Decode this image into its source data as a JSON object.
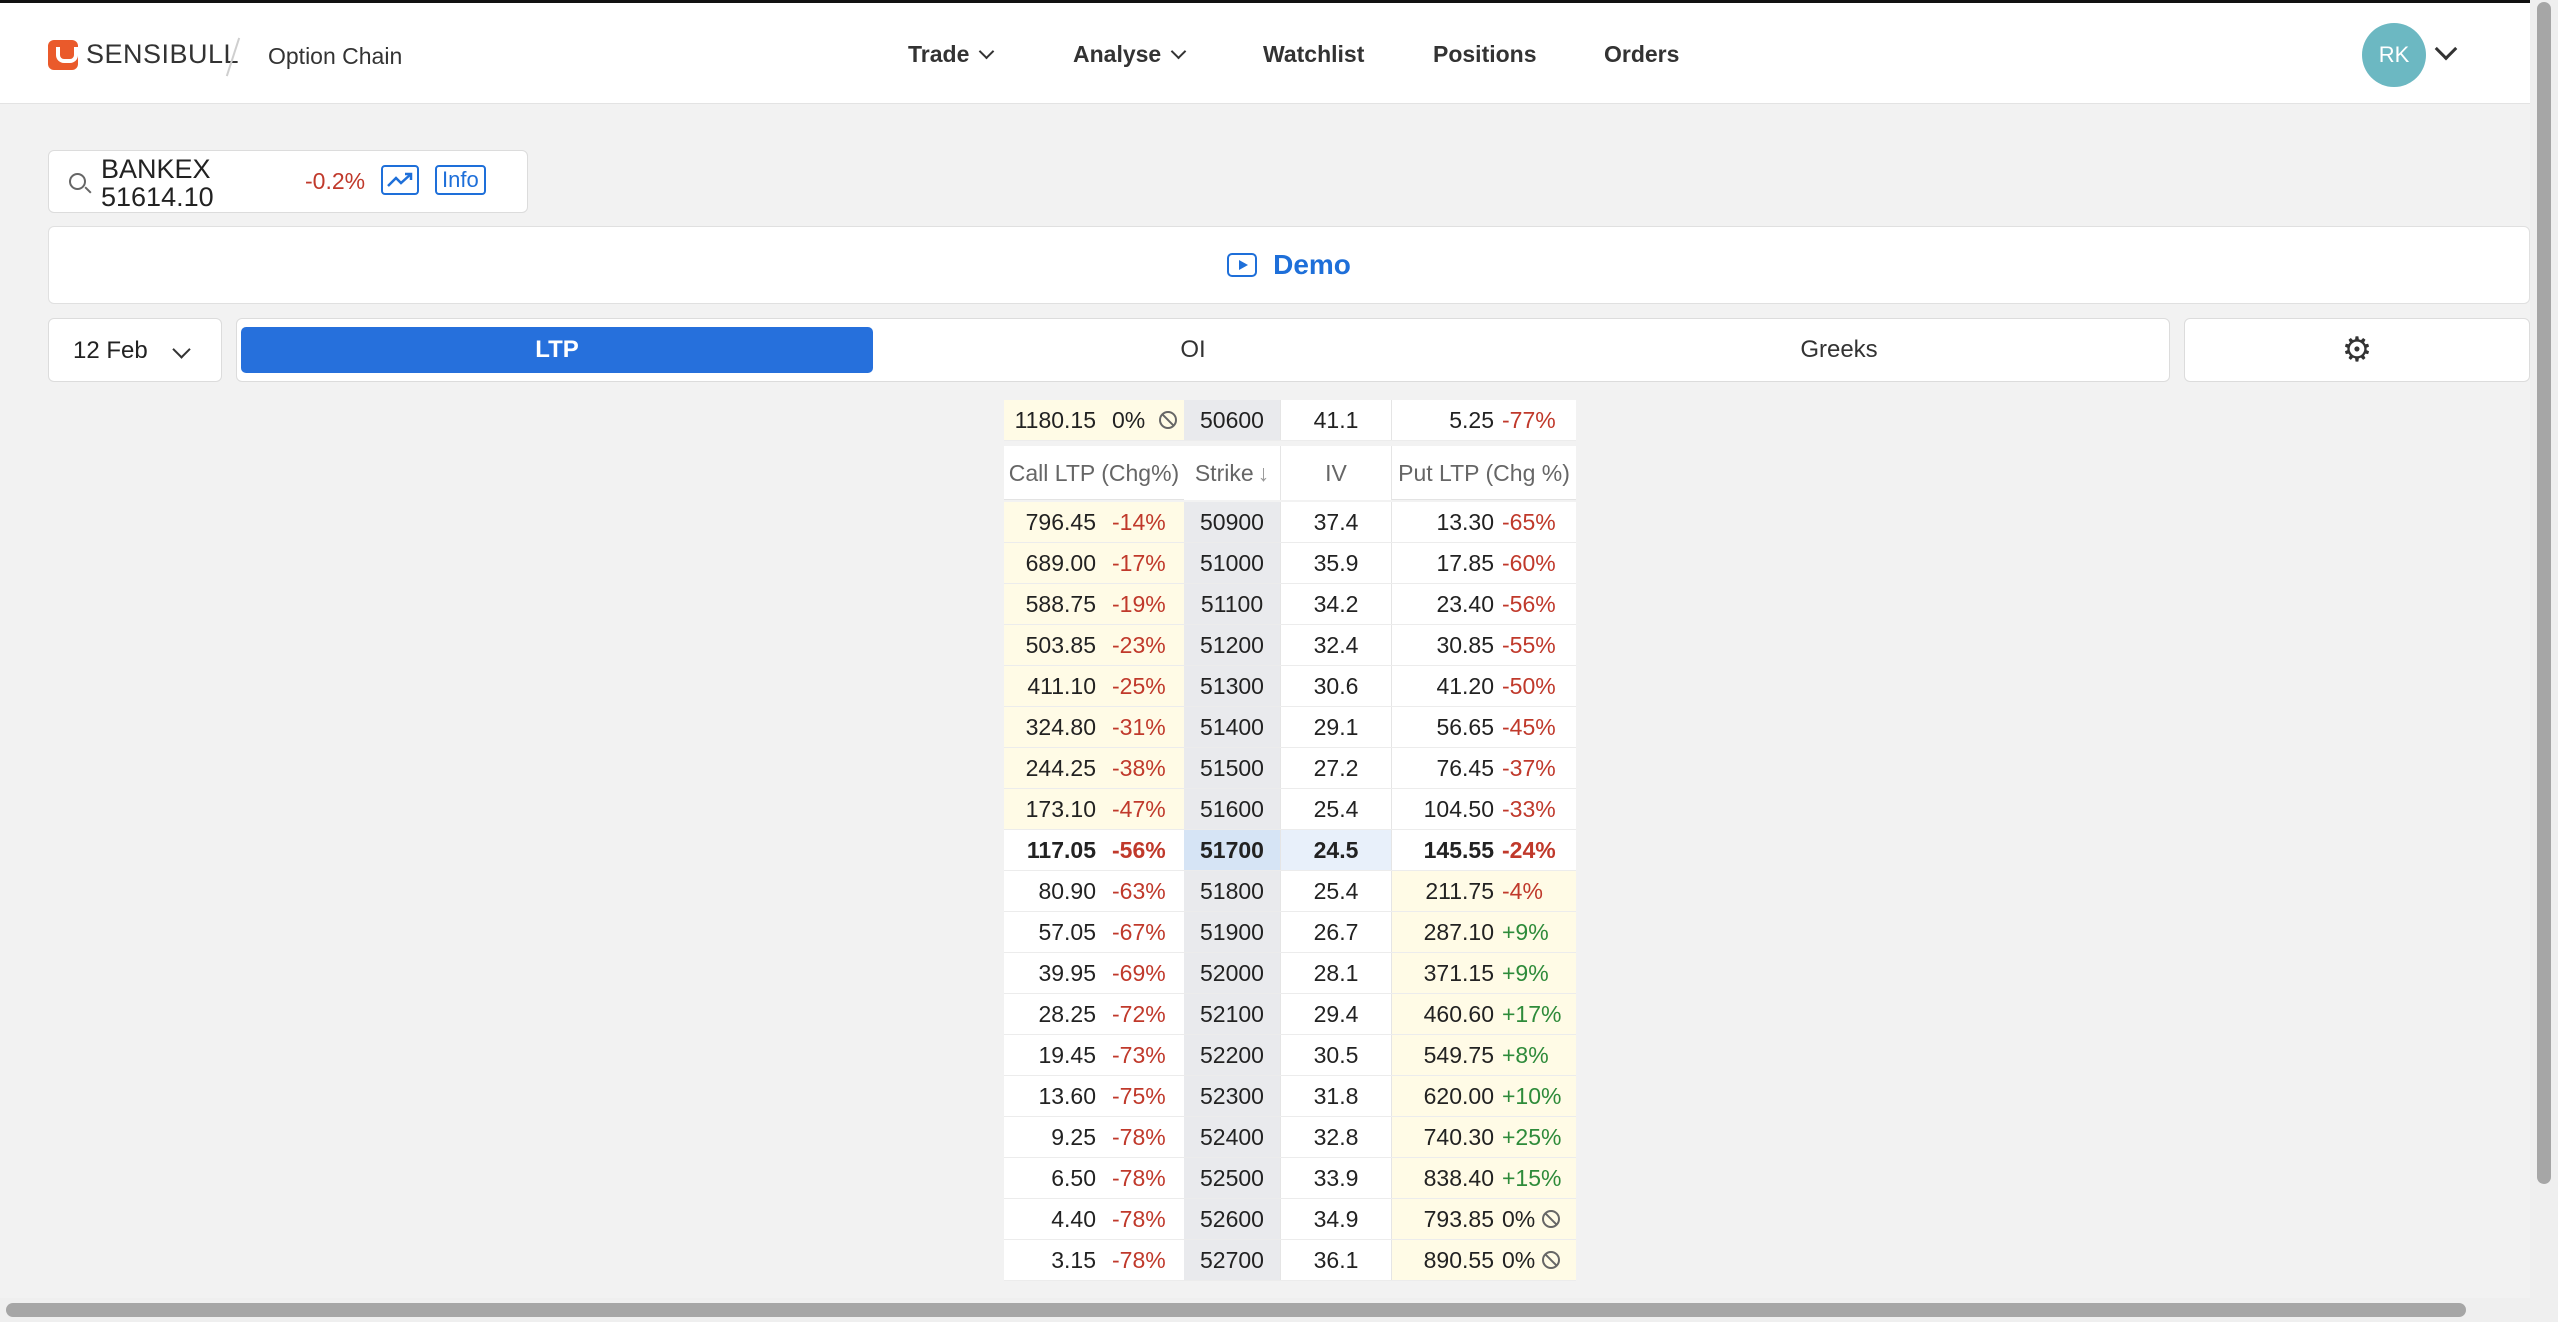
{
  "header": {
    "brand": "SENSIBULL",
    "breadcrumb": "Option Chain",
    "nav": {
      "trade": "Trade",
      "analyse": "Analyse",
      "watchlist": "Watchlist",
      "positions": "Positions",
      "orders": "Orders"
    },
    "user_initials": "RK"
  },
  "search": {
    "symbol": "BANKEX",
    "price": "51614.10",
    "change": "-0.2%",
    "info_label": "Info"
  },
  "demo": {
    "label": "Demo"
  },
  "controls": {
    "expiry": "12 Feb",
    "tabs": [
      "LTP",
      "OI",
      "Greeks"
    ],
    "active_tab": "LTP"
  },
  "pinned_row": {
    "call_ltp": "1180.15",
    "call_chg": "0%",
    "strike": "50600",
    "iv": "41.1",
    "put_ltp": "5.25",
    "put_chg": "-77%"
  },
  "columns": {
    "call": "Call LTP (Chg%)",
    "strike": "Strike",
    "iv": "IV",
    "put": "Put LTP (Chg %)"
  },
  "rows": [
    {
      "call_ltp": "796.45",
      "call_chg": "-14%",
      "strike": "50900",
      "iv": "37.4",
      "put_ltp": "13.30",
      "put_chg": "-65%"
    },
    {
      "call_ltp": "689.00",
      "call_chg": "-17%",
      "strike": "51000",
      "iv": "35.9",
      "put_ltp": "17.85",
      "put_chg": "-60%"
    },
    {
      "call_ltp": "588.75",
      "call_chg": "-19%",
      "strike": "51100",
      "iv": "34.2",
      "put_ltp": "23.40",
      "put_chg": "-56%"
    },
    {
      "call_ltp": "503.85",
      "call_chg": "-23%",
      "strike": "51200",
      "iv": "32.4",
      "put_ltp": "30.85",
      "put_chg": "-55%"
    },
    {
      "call_ltp": "411.10",
      "call_chg": "-25%",
      "strike": "51300",
      "iv": "30.6",
      "put_ltp": "41.20",
      "put_chg": "-50%"
    },
    {
      "call_ltp": "324.80",
      "call_chg": "-31%",
      "strike": "51400",
      "iv": "29.1",
      "put_ltp": "56.65",
      "put_chg": "-45%"
    },
    {
      "call_ltp": "244.25",
      "call_chg": "-38%",
      "strike": "51500",
      "iv": "27.2",
      "put_ltp": "76.45",
      "put_chg": "-37%"
    },
    {
      "call_ltp": "173.10",
      "call_chg": "-47%",
      "strike": "51600",
      "iv": "25.4",
      "put_ltp": "104.50",
      "put_chg": "-33%"
    },
    {
      "call_ltp": "117.05",
      "call_chg": "-56%",
      "strike": "51700",
      "iv": "24.5",
      "put_ltp": "145.55",
      "put_chg": "-24%"
    },
    {
      "call_ltp": "80.90",
      "call_chg": "-63%",
      "strike": "51800",
      "iv": "25.4",
      "put_ltp": "211.75",
      "put_chg": "-4%"
    },
    {
      "call_ltp": "57.05",
      "call_chg": "-67%",
      "strike": "51900",
      "iv": "26.7",
      "put_ltp": "287.10",
      "put_chg": "+9%"
    },
    {
      "call_ltp": "39.95",
      "call_chg": "-69%",
      "strike": "52000",
      "iv": "28.1",
      "put_ltp": "371.15",
      "put_chg": "+9%"
    },
    {
      "call_ltp": "28.25",
      "call_chg": "-72%",
      "strike": "52100",
      "iv": "29.4",
      "put_ltp": "460.60",
      "put_chg": "+17%"
    },
    {
      "call_ltp": "19.45",
      "call_chg": "-73%",
      "strike": "52200",
      "iv": "30.5",
      "put_ltp": "549.75",
      "put_chg": "+8%"
    },
    {
      "call_ltp": "13.60",
      "call_chg": "-75%",
      "strike": "52300",
      "iv": "31.8",
      "put_ltp": "620.00",
      "put_chg": "+10%"
    },
    {
      "call_ltp": "9.25",
      "call_chg": "-78%",
      "strike": "52400",
      "iv": "32.8",
      "put_ltp": "740.30",
      "put_chg": "+25%"
    },
    {
      "call_ltp": "6.50",
      "call_chg": "-78%",
      "strike": "52500",
      "iv": "33.9",
      "put_ltp": "838.40",
      "put_chg": "+15%"
    },
    {
      "call_ltp": "4.40",
      "call_chg": "-78%",
      "strike": "52600",
      "iv": "34.9",
      "put_ltp": "793.85",
      "put_chg": "0%"
    },
    {
      "call_ltp": "3.15",
      "call_chg": "-78%",
      "strike": "52700",
      "iv": "36.1",
      "put_ltp": "890.55",
      "put_chg": "0%"
    }
  ],
  "atm_strike": "51700",
  "colors": {
    "accent": "#2670dc",
    "negative": "#c0392b",
    "positive": "#2e8b3a",
    "itm": "#fffbe6",
    "brand": "#ea5a2b"
  }
}
